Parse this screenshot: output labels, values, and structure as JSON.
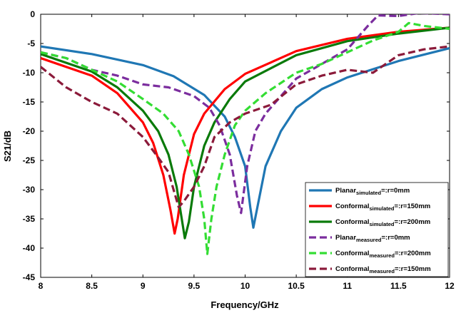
{
  "chart_data": {
    "type": "line",
    "title": "",
    "xlabel": "Frequency/GHz",
    "ylabel": "S21/dB",
    "xlim": [
      8,
      12
    ],
    "ylim": [
      -45,
      0
    ],
    "xticks": [
      "8",
      "8.5",
      "9",
      "9.5",
      "10",
      "10.5",
      "11",
      "11.5",
      "12"
    ],
    "yticks": [
      "0",
      "-5",
      "-10",
      "-15",
      "-20",
      "-25",
      "-30",
      "-35",
      "-40",
      "-45"
    ],
    "grid": false,
    "legend_position": "bottom-right",
    "series": [
      {
        "name_main": "Planar",
        "name_sub": "simulated",
        "name_suffix": "=:r=0mm",
        "color": "#1f77b4",
        "dash": "solid",
        "points": [
          [
            8.0,
            -5.5
          ],
          [
            8.5,
            -6.8
          ],
          [
            9.0,
            -8.7
          ],
          [
            9.3,
            -10.6
          ],
          [
            9.6,
            -13.8
          ],
          [
            9.8,
            -17.5
          ],
          [
            9.9,
            -21.0
          ],
          [
            10.0,
            -26.0
          ],
          [
            10.05,
            -33.0
          ],
          [
            10.08,
            -36.5
          ],
          [
            10.12,
            -33.0
          ],
          [
            10.2,
            -26.0
          ],
          [
            10.35,
            -20.0
          ],
          [
            10.5,
            -16.0
          ],
          [
            10.75,
            -12.8
          ],
          [
            11.0,
            -10.8
          ],
          [
            11.5,
            -8.0
          ],
          [
            12.0,
            -5.8
          ]
        ]
      },
      {
        "name_main": "Conformal",
        "name_sub": "simulated",
        "name_suffix": "=:r=150mm",
        "color": "#ff0000",
        "dash": "solid",
        "points": [
          [
            8.0,
            -7.5
          ],
          [
            8.5,
            -10.5
          ],
          [
            8.75,
            -13.5
          ],
          [
            9.0,
            -18.5
          ],
          [
            9.1,
            -22.0
          ],
          [
            9.2,
            -27.5
          ],
          [
            9.27,
            -33.5
          ],
          [
            9.31,
            -37.5
          ],
          [
            9.34,
            -35.0
          ],
          [
            9.4,
            -27.5
          ],
          [
            9.5,
            -20.5
          ],
          [
            9.6,
            -17.0
          ],
          [
            9.8,
            -12.8
          ],
          [
            10.0,
            -10.2
          ],
          [
            10.5,
            -6.3
          ],
          [
            11.0,
            -4.2
          ],
          [
            11.5,
            -3.0
          ],
          [
            12.0,
            -2.3
          ]
        ]
      },
      {
        "name_main": "Conformal",
        "name_sub": "simulated",
        "name_suffix": "=:r=200mm",
        "color": "#0a7a0a",
        "dash": "solid",
        "points": [
          [
            8.0,
            -6.8
          ],
          [
            8.5,
            -9.8
          ],
          [
            8.75,
            -12.5
          ],
          [
            9.0,
            -16.5
          ],
          [
            9.15,
            -20.0
          ],
          [
            9.25,
            -24.0
          ],
          [
            9.33,
            -29.5
          ],
          [
            9.38,
            -35.0
          ],
          [
            9.41,
            -38.3
          ],
          [
            9.45,
            -35.5
          ],
          [
            9.5,
            -29.5
          ],
          [
            9.6,
            -22.5
          ],
          [
            9.7,
            -18.5
          ],
          [
            9.85,
            -14.5
          ],
          [
            10.0,
            -11.5
          ],
          [
            10.5,
            -7.0
          ],
          [
            11.0,
            -4.6
          ],
          [
            11.5,
            -3.3
          ],
          [
            12.0,
            -2.3
          ]
        ]
      },
      {
        "name_main": "Planar",
        "name_sub": "measured",
        "name_suffix": "=:r=0mm",
        "color": "#7b2d9e",
        "dash": "dashed",
        "points": [
          [
            8.0,
            -6.5
          ],
          [
            8.25,
            -7.5
          ],
          [
            8.5,
            -9.5
          ],
          [
            8.75,
            -10.5
          ],
          [
            9.0,
            -12.0
          ],
          [
            9.25,
            -12.5
          ],
          [
            9.5,
            -14.0
          ],
          [
            9.65,
            -16.0
          ],
          [
            9.75,
            -19.0
          ],
          [
            9.85,
            -24.0
          ],
          [
            9.92,
            -31.0
          ],
          [
            9.96,
            -34.0
          ],
          [
            9.99,
            -30.0
          ],
          [
            10.02,
            -26.0
          ],
          [
            10.1,
            -20.0
          ],
          [
            10.2,
            -17.0
          ],
          [
            10.3,
            -15.0
          ],
          [
            10.5,
            -11.0
          ],
          [
            10.7,
            -9.0
          ],
          [
            10.9,
            -7.0
          ],
          [
            11.0,
            -6.0
          ],
          [
            11.1,
            -4.0
          ],
          [
            11.2,
            -2.0
          ],
          [
            11.3,
            -0.2
          ],
          [
            11.5,
            -0.3
          ],
          [
            11.7,
            0.2
          ],
          [
            12.0,
            0.0
          ]
        ]
      },
      {
        "name_main": "Conformal",
        "name_sub": "measured",
        "name_suffix": "=:r=200mm",
        "color": "#33dd33",
        "dash": "dashed",
        "points": [
          [
            8.0,
            -6.5
          ],
          [
            8.25,
            -7.5
          ],
          [
            8.5,
            -9.5
          ],
          [
            8.75,
            -11.5
          ],
          [
            9.0,
            -14.5
          ],
          [
            9.2,
            -17.0
          ],
          [
            9.35,
            -20.0
          ],
          [
            9.45,
            -24.0
          ],
          [
            9.55,
            -29.5
          ],
          [
            9.6,
            -35.0
          ],
          [
            9.63,
            -41.0
          ],
          [
            9.67,
            -35.0
          ],
          [
            9.72,
            -29.5
          ],
          [
            9.8,
            -24.0
          ],
          [
            9.9,
            -19.0
          ],
          [
            10.0,
            -16.5
          ],
          [
            10.2,
            -13.5
          ],
          [
            10.5,
            -10.0
          ],
          [
            10.75,
            -8.5
          ],
          [
            11.0,
            -6.5
          ],
          [
            11.25,
            -4.5
          ],
          [
            11.5,
            -3.0
          ],
          [
            11.6,
            -1.5
          ],
          [
            11.75,
            -2.0
          ],
          [
            12.0,
            -2.5
          ]
        ]
      },
      {
        "name_main": "Conformal",
        "name_sub": "measured",
        "name_suffix": "=:r=150mm",
        "color": "#8b1a3a",
        "dash": "dashed",
        "points": [
          [
            8.0,
            -9.0
          ],
          [
            8.25,
            -12.5
          ],
          [
            8.5,
            -15.0
          ],
          [
            8.75,
            -17.0
          ],
          [
            9.0,
            -21.0
          ],
          [
            9.15,
            -24.5
          ],
          [
            9.25,
            -27.0
          ],
          [
            9.3,
            -30.0
          ],
          [
            9.35,
            -33.0
          ],
          [
            9.4,
            -32.0
          ],
          [
            9.5,
            -29.5
          ],
          [
            9.6,
            -26.0
          ],
          [
            9.7,
            -21.0
          ],
          [
            9.85,
            -18.5
          ],
          [
            10.0,
            -17.0
          ],
          [
            10.25,
            -15.5
          ],
          [
            10.5,
            -12.0
          ],
          [
            10.75,
            -10.5
          ],
          [
            11.0,
            -9.5
          ],
          [
            11.25,
            -10.0
          ],
          [
            11.5,
            -7.0
          ],
          [
            11.75,
            -6.0
          ],
          [
            12.0,
            -5.5
          ]
        ]
      }
    ]
  }
}
